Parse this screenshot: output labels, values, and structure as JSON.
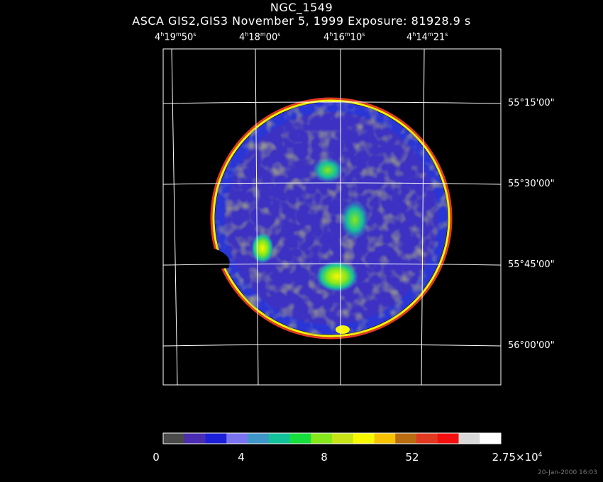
{
  "header": {
    "object": "NGC_1549",
    "subtitle": "ASCA GIS2,GIS3 November 5, 1999 Exposure: 81928.9 s"
  },
  "ra_labels": [
    {
      "h": "4",
      "m": "19",
      "s": "50"
    },
    {
      "h": "4",
      "m": "18",
      "s": "00"
    },
    {
      "h": "4",
      "m": "16",
      "s": "10"
    },
    {
      "h": "4",
      "m": "14",
      "s": "21"
    }
  ],
  "dec_labels": [
    "55°15'00\"",
    "55°30'00\"",
    "55°45'00\"",
    "56°00'00\""
  ],
  "colorbar": {
    "colors": [
      "#4a4a4a",
      "#4b2db3",
      "#1d20d9",
      "#7a74f0",
      "#3f97c7",
      "#14c29a",
      "#16de3c",
      "#86e81a",
      "#c8e418",
      "#f8f800",
      "#f7c200",
      "#b96c10",
      "#e23a20",
      "#f41010",
      "#d9d9d9",
      "#ffffff"
    ],
    "labels": [
      "0",
      "4",
      "8",
      "52"
    ],
    "max_mantissa": "2.75",
    "max_base": "×10",
    "max_exp": "4"
  },
  "image_colors": {
    "background": "#000000",
    "low": "#4a4a4a",
    "mid": "#4b2db3",
    "blue": "#1d20d9",
    "green": "#16de3c",
    "yellow": "#f8f800",
    "red": "#e23a20"
  },
  "timestamp": "20-Jan-2000 16:03"
}
